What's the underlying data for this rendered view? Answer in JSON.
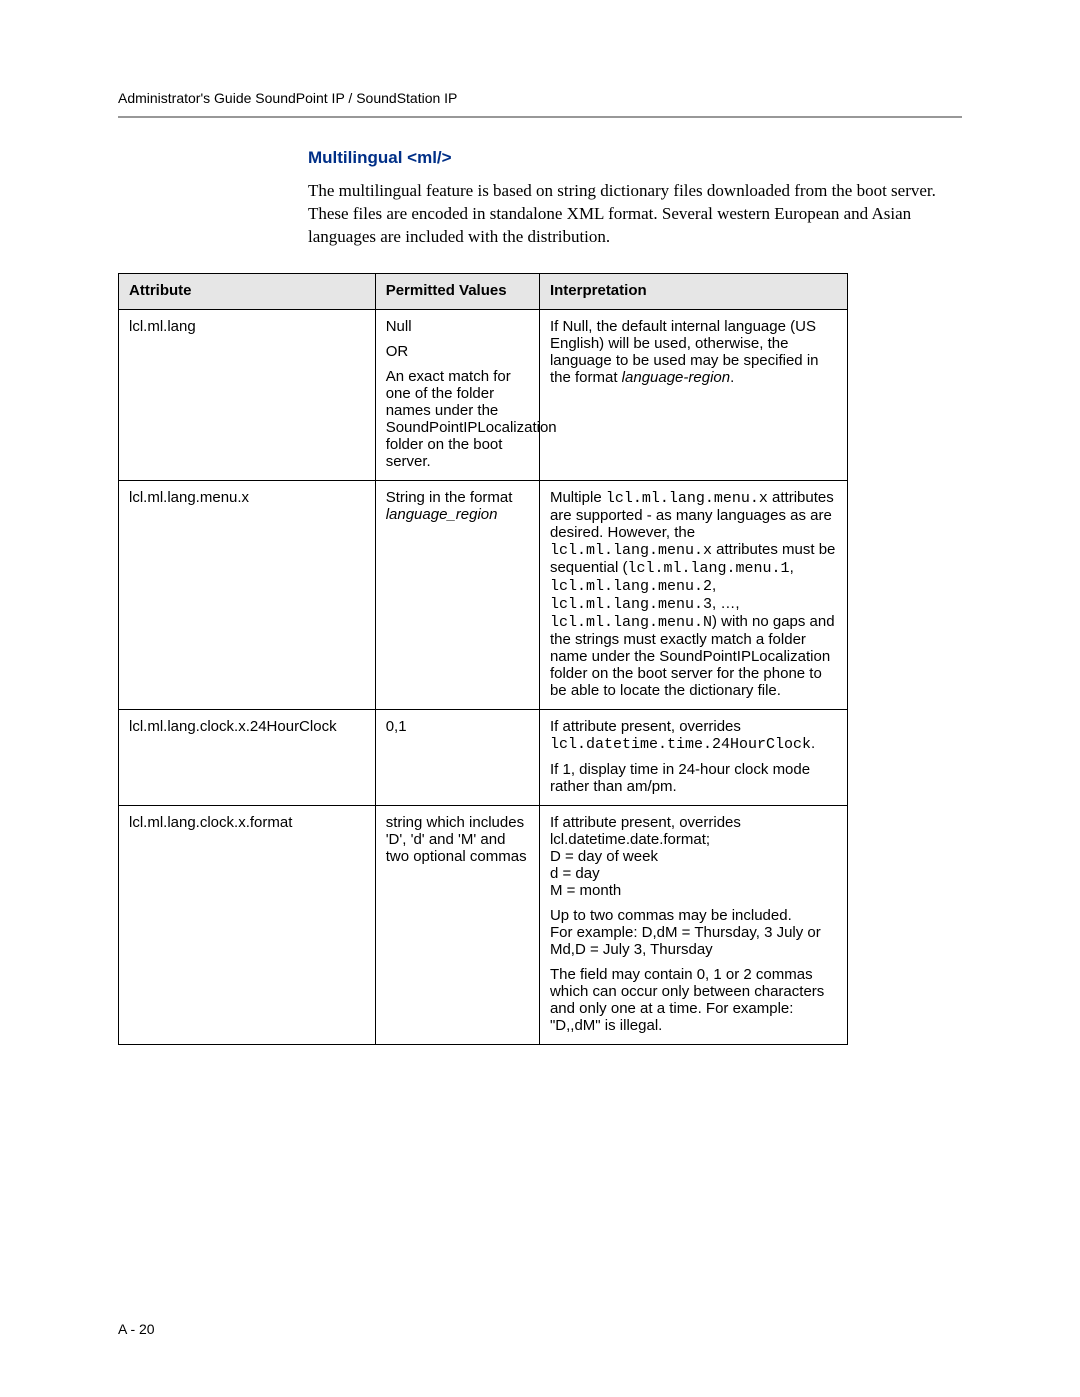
{
  "header": {
    "running_head": "Administrator's Guide SoundPoint IP / SoundStation IP"
  },
  "section": {
    "title": "Multilingual <ml/>",
    "intro": "The multilingual feature is based on string dictionary files downloaded from the boot server. These files are encoded in standalone XML format. Several western European and Asian languages are included with the distribution."
  },
  "table": {
    "headers": {
      "attribute": "Attribute",
      "permitted": "Permitted Values",
      "interpretation": "Interpretation"
    },
    "rows": [
      {
        "attribute": "lcl.ml.lang",
        "permitted_lines": {
          "l1": "Null",
          "l2": "OR",
          "l3": "An exact match for one of the folder names under the SoundPointIPLocalization folder on the boot server."
        },
        "interp": {
          "pre": "If Null, the default internal language (US English) will be used, otherwise, the language to be used may be specified in the format ",
          "italic": "language-region",
          "post": "."
        }
      },
      {
        "attribute": "lcl.ml.lang.menu.x",
        "permitted": {
          "pre": "String in the format ",
          "italic": "language_region"
        },
        "interp": {
          "t1": "Multiple ",
          "c1": "lcl.ml.lang.menu.x",
          "t2": " attributes are supported - as many languages as are desired. However, the ",
          "c2": "lcl.ml.lang.menu.x",
          "t3": " attributes must be sequential (",
          "c3": "lcl.ml.lang.menu.1",
          "t4": ", ",
          "c4": "lcl.ml.lang.menu.2",
          "t5": ", ",
          "c5": "lcl.ml.lang.menu.3",
          "t6": ", …, ",
          "c6": "lcl.ml.lang.menu.N",
          "t7": ") with no gaps and the strings must exactly match a folder name under the SoundPointIPLocalization folder on the boot server for the phone to be able to locate the dictionary file."
        }
      },
      {
        "attribute": "lcl.ml.lang.clock.x.24HourClock",
        "permitted": "0,1",
        "interp": {
          "p1a": "If attribute present, overrides ",
          "p1code": "lcl.datetime.time.24HourClock",
          "p1b": ".",
          "p2": "If 1, display time in 24-hour clock mode rather than am/pm."
        }
      },
      {
        "attribute": "lcl.ml.lang.clock.x.format",
        "permitted": "string which includes 'D', 'd' and 'M' and two optional commas",
        "interp": {
          "p1": "If attribute present, overrides lcl.datetime.date.format;\nD = day of week\nd = day\nM = month",
          "p2": "Up to two commas may be included.\nFor example: D,dM = Thursday, 3 July or Md,D = July 3, Thursday",
          "p3": "The field may contain 0, 1 or 2 commas which can occur only between characters and only one at a time. For example: \"D,,dM\" is illegal."
        }
      }
    ]
  },
  "footer": {
    "page_number": "A - 20"
  },
  "styles": {
    "title_color": "#002f87",
    "hr_color": "#989898",
    "header_bg": "#e6e6e6",
    "table_border": "#000000"
  }
}
